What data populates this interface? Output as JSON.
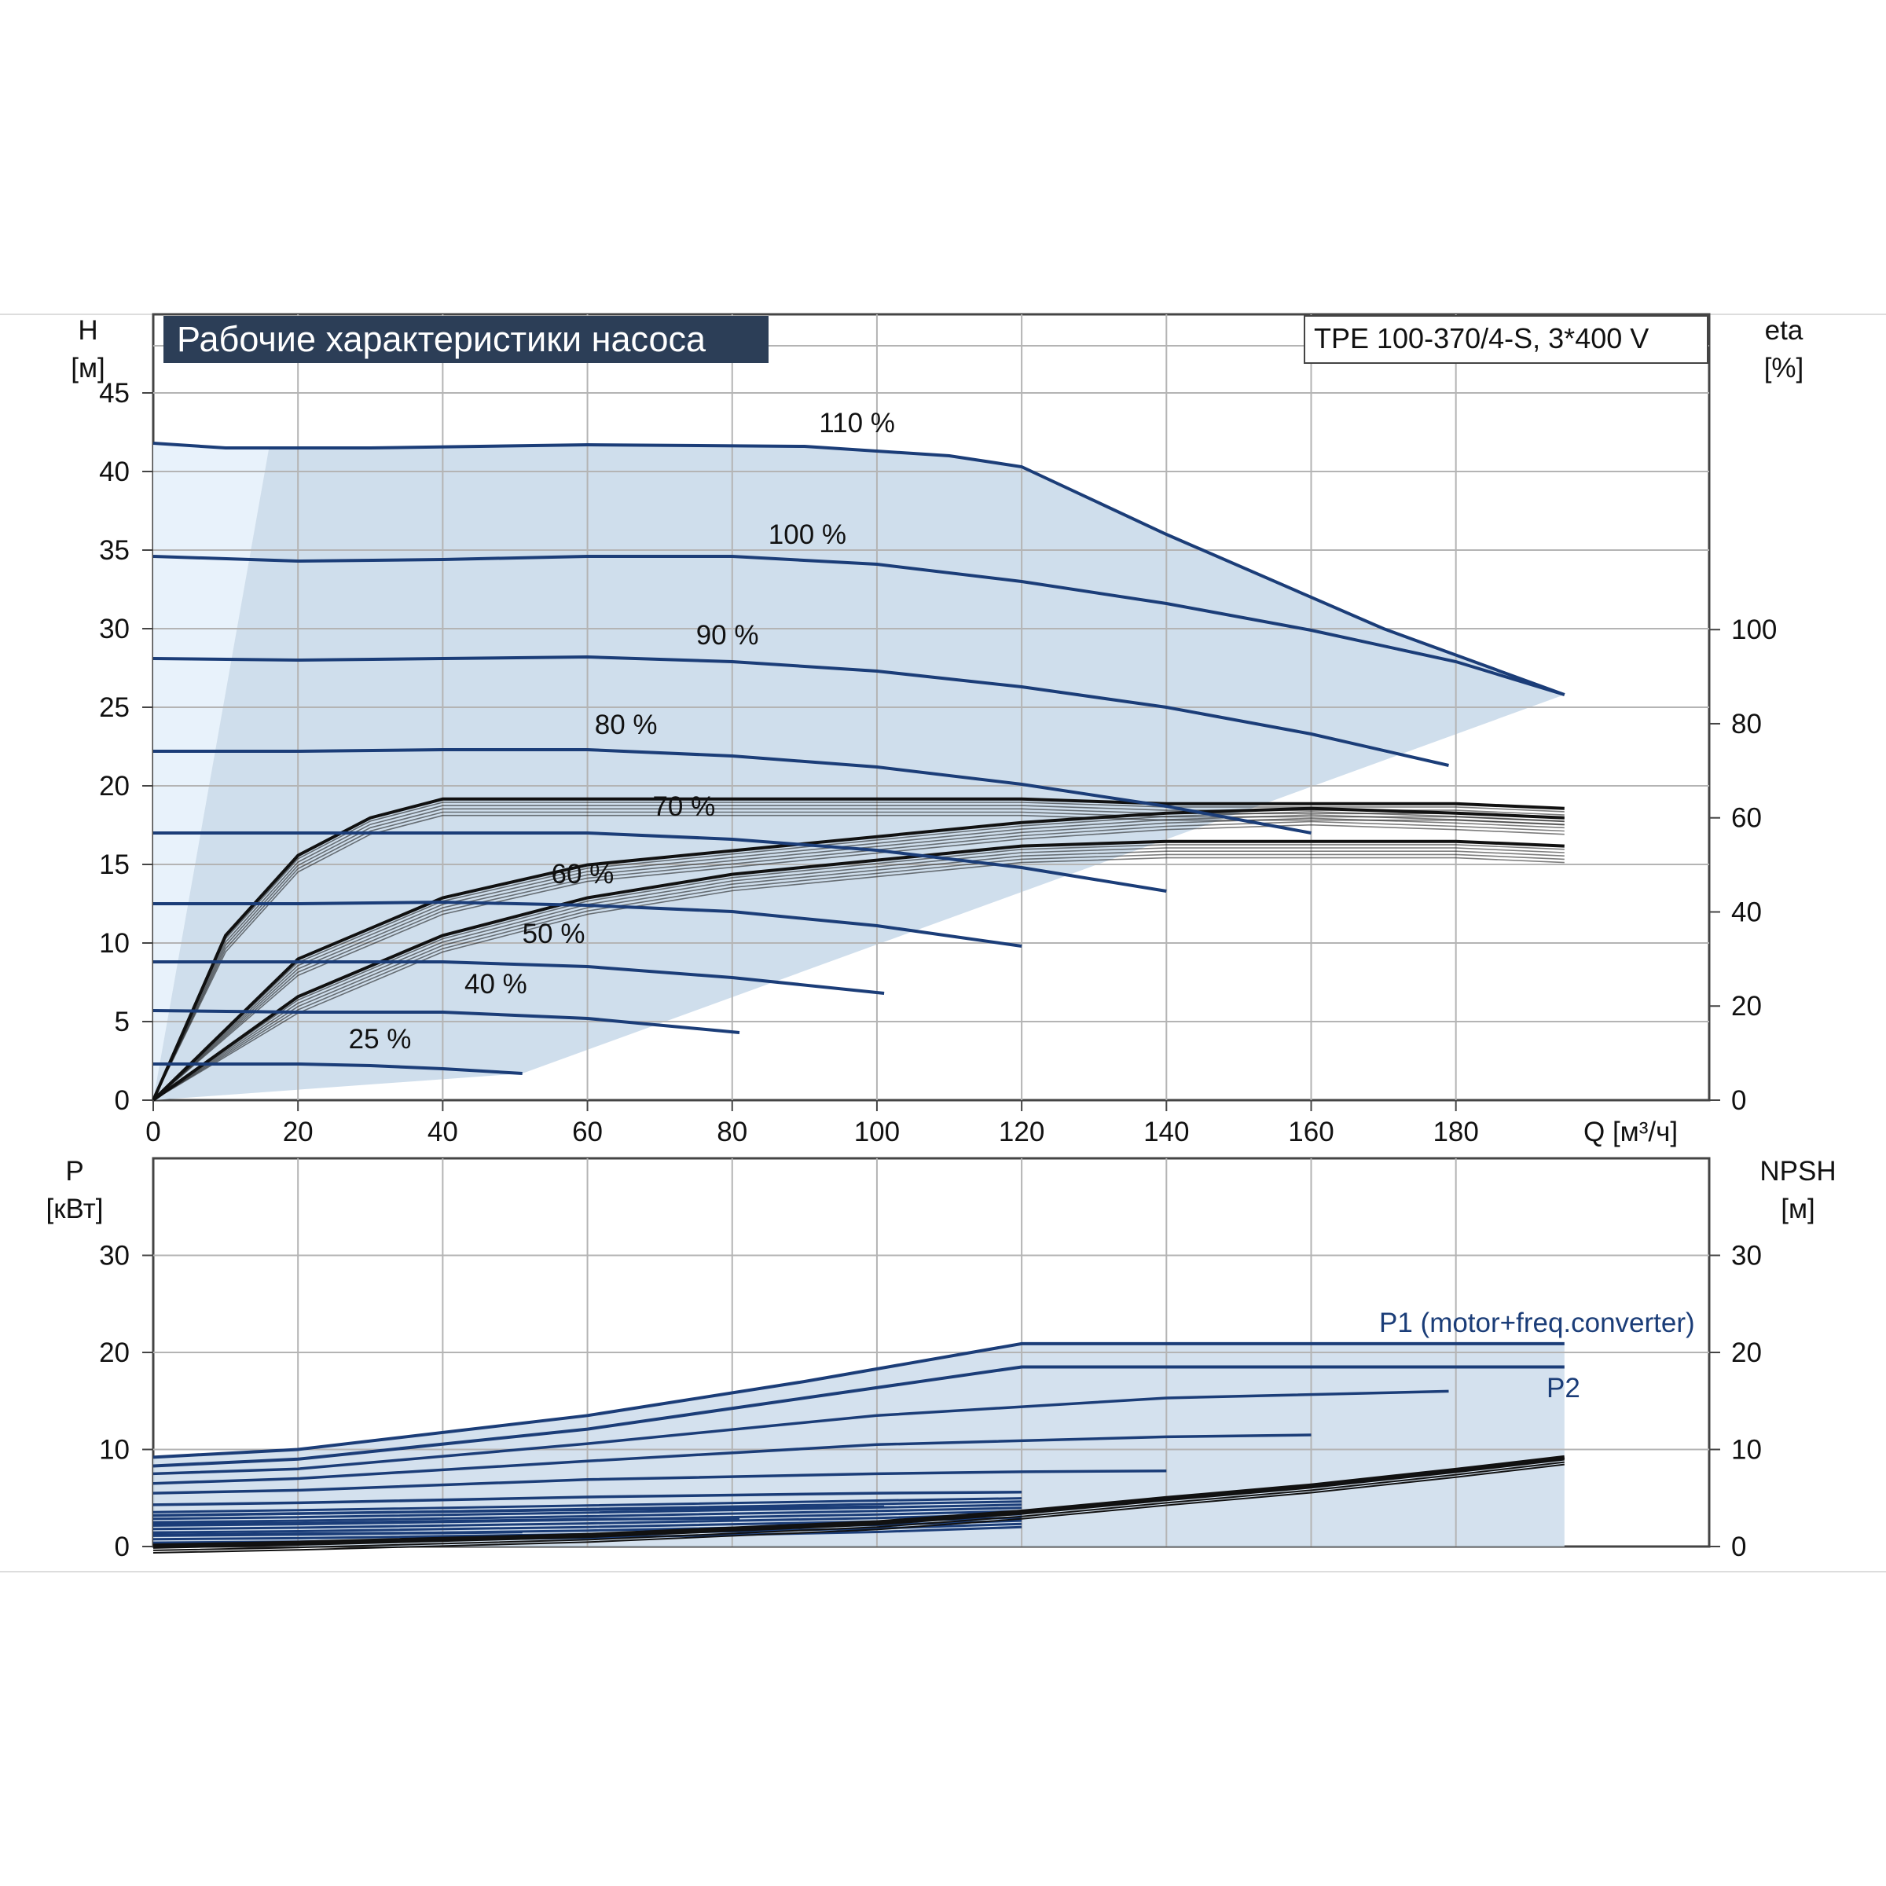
{
  "chart_data": [
    {
      "type": "line",
      "title": "Рабочие характеристики насоса",
      "model": "TPE 100-370/4-S, 3*400 V",
      "xlabel": "Q [м³/ч]",
      "ylabel": [
        "H",
        "[м]"
      ],
      "y2label": [
        "eta",
        "[%]"
      ],
      "x_ticks": [
        0,
        20,
        40,
        60,
        80,
        100,
        120,
        140,
        160,
        180
      ],
      "xlim": [
        0,
        215
      ],
      "y_ticks": [
        0,
        5,
        10,
        15,
        20,
        25,
        30,
        35,
        40,
        45
      ],
      "ylim": [
        0,
        50
      ],
      "y2_ticks": [
        0,
        20,
        40,
        60,
        80,
        100
      ],
      "y2lim": [
        0,
        167
      ],
      "colors": {
        "curve": "#1b3d78",
        "envelope": "#cfdeec",
        "light": "#e8f2fb",
        "grid": "#b4b4b4"
      },
      "series": [
        {
          "name": "110 %",
          "x": [
            0,
            10,
            30,
            60,
            90,
            110,
            120,
            140,
            170,
            195
          ],
          "y": [
            41.8,
            41.5,
            41.5,
            41.7,
            41.6,
            41.0,
            40.3,
            36.0,
            30.0,
            25.8
          ]
        },
        {
          "name": "100 %",
          "x": [
            0,
            20,
            40,
            60,
            80,
            100,
            120,
            140,
            160,
            180,
            195
          ],
          "y": [
            34.6,
            34.3,
            34.4,
            34.6,
            34.6,
            34.1,
            33.0,
            31.6,
            29.9,
            27.9,
            25.8
          ]
        },
        {
          "name": "90 %",
          "x": [
            0,
            20,
            40,
            60,
            80,
            100,
            120,
            140,
            160,
            179
          ],
          "y": [
            28.1,
            28.0,
            28.1,
            28.2,
            27.9,
            27.3,
            26.3,
            25.0,
            23.3,
            21.3
          ]
        },
        {
          "name": "80 %",
          "x": [
            0,
            20,
            40,
            60,
            80,
            100,
            120,
            140,
            160
          ],
          "y": [
            22.2,
            22.2,
            22.3,
            22.3,
            21.9,
            21.2,
            20.1,
            18.7,
            17.0
          ]
        },
        {
          "name": "70 %",
          "x": [
            0,
            20,
            40,
            60,
            80,
            100,
            120,
            140
          ],
          "y": [
            17.0,
            17.0,
            17.0,
            17.0,
            16.6,
            15.9,
            14.8,
            13.3
          ]
        },
        {
          "name": "60 %",
          "x": [
            0,
            20,
            40,
            60,
            80,
            100,
            120
          ],
          "y": [
            12.5,
            12.5,
            12.6,
            12.4,
            12.0,
            11.1,
            9.8
          ]
        },
        {
          "name": "50 %",
          "x": [
            0,
            20,
            40,
            60,
            80,
            101
          ],
          "y": [
            8.8,
            8.8,
            8.8,
            8.5,
            7.8,
            6.8
          ]
        },
        {
          "name": "40 %",
          "x": [
            0,
            20,
            40,
            60,
            81
          ],
          "y": [
            5.7,
            5.6,
            5.6,
            5.2,
            4.3
          ]
        },
        {
          "name": "25 %",
          "x": [
            0,
            10,
            20,
            30,
            40,
            51
          ],
          "y": [
            2.3,
            2.3,
            2.3,
            2.2,
            2.0,
            1.7
          ]
        }
      ],
      "efficiency": [
        {
          "x": [
            0,
            10,
            20,
            30,
            40,
            60,
            80,
            100,
            120,
            140,
            160,
            180,
            195
          ],
          "y": [
            0,
            35,
            52,
            60,
            64,
            64,
            64,
            64,
            64,
            63,
            63,
            63,
            62
          ]
        },
        {
          "x": [
            0,
            20,
            40,
            60,
            80,
            100,
            120,
            140,
            160,
            180,
            195
          ],
          "y": [
            0,
            30,
            43,
            50,
            53,
            56,
            59,
            61,
            62,
            61,
            60
          ]
        },
        {
          "x": [
            0,
            20,
            40,
            60,
            80,
            100,
            120,
            140,
            160,
            180,
            195
          ],
          "y": [
            0,
            22,
            35,
            43,
            48,
            51,
            54,
            55,
            55,
            55,
            54
          ]
        }
      ]
    },
    {
      "type": "line",
      "ylabel": [
        "P",
        "[кВт]"
      ],
      "y2label": [
        "NPSH",
        "[м]"
      ],
      "y_ticks": [
        0,
        10,
        20,
        30
      ],
      "ylim": [
        0,
        40
      ],
      "y2_ticks": [
        0,
        10,
        20,
        30
      ],
      "annotations": [
        "P1 (motor+freq.converter)",
        "P2"
      ],
      "series": [
        {
          "name": "P1 (motor+freq.converter)",
          "x": [
            0,
            20,
            60,
            90,
            120,
            140,
            160,
            195
          ],
          "y": [
            9.2,
            10.0,
            13.5,
            17.0,
            20.9,
            20.9,
            20.9,
            20.9
          ]
        },
        {
          "name": "P2",
          "x": [
            0,
            20,
            60,
            90,
            120,
            140,
            160,
            195
          ],
          "y": [
            8.3,
            9.0,
            12.1,
            15.3,
            18.5,
            18.5,
            18.5,
            18.5
          ]
        },
        {
          "x": [
            0,
            20,
            60,
            100,
            140,
            179
          ],
          "y": [
            7.5,
            8.0,
            10.6,
            13.5,
            15.3,
            16.0
          ]
        },
        {
          "x": [
            0,
            20,
            60,
            100,
            140,
            160
          ],
          "y": [
            6.5,
            7.0,
            8.8,
            10.5,
            11.3,
            11.5
          ]
        },
        {
          "x": [
            0,
            20,
            60,
            100,
            120,
            140
          ],
          "y": [
            5.5,
            5.8,
            6.9,
            7.5,
            7.7,
            7.8
          ]
        },
        {
          "x": [
            0,
            20,
            60,
            100,
            120
          ],
          "y": [
            4.3,
            4.5,
            5.1,
            5.5,
            5.6
          ]
        },
        {
          "x": [
            0,
            20,
            60,
            101
          ],
          "y": [
            3.2,
            3.4,
            3.8,
            4.1
          ]
        },
        {
          "x": [
            0,
            20,
            60,
            81
          ],
          "y": [
            2.3,
            2.4,
            2.8,
            2.9
          ]
        },
        {
          "x": [
            0,
            20,
            40,
            51
          ],
          "y": [
            1.2,
            1.3,
            1.4,
            1.5
          ]
        }
      ],
      "npsh": {
        "x": [
          0,
          20,
          60,
          100,
          120,
          140,
          160,
          180,
          195
        ],
        "y": [
          0.1,
          0.4,
          1.2,
          2.5,
          3.6,
          5.0,
          6.3,
          7.9,
          9.2
        ]
      }
    }
  ]
}
